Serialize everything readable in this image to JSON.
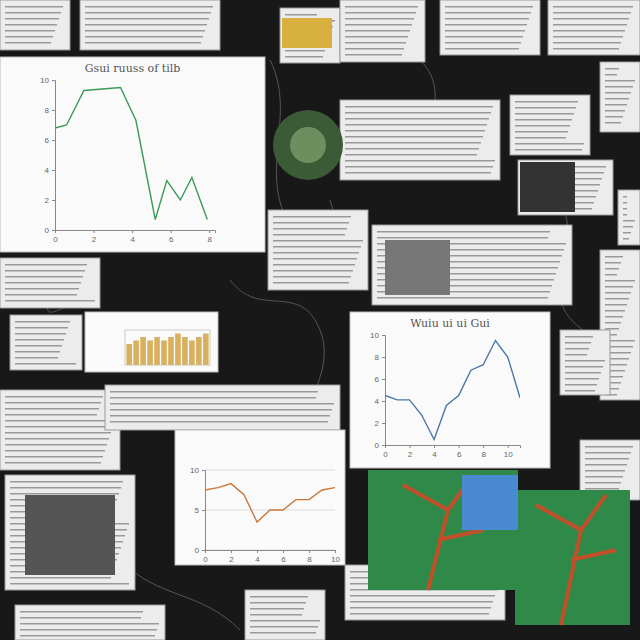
{
  "chart_data": [
    {
      "type": "line",
      "title": "Gsui ruuss of tilb",
      "color": "#3a9a5a",
      "x": [
        0,
        0.6,
        1.5,
        3.4,
        4.2,
        5.2,
        5.8,
        6.5,
        7.1,
        7.9
      ],
      "values": [
        6.8,
        7.0,
        9.3,
        9.5,
        7.3,
        0.7,
        3.3,
        2.0,
        3.5,
        0.7
      ],
      "xlim": [
        0,
        8.3
      ],
      "xticks": [
        0,
        2,
        4,
        6,
        8
      ],
      "ylim": [
        0,
        10
      ],
      "yticks": [
        0,
        2,
        4,
        6,
        8,
        10
      ],
      "grid": false
    },
    {
      "type": "line",
      "title": "Wuiu ui ui Gui",
      "color": "#4a78a8",
      "x": [
        0,
        1,
        2,
        3,
        4,
        5,
        6,
        7,
        8,
        9,
        10,
        11
      ],
      "values": [
        4.5,
        4.1,
        4.1,
        2.7,
        0.5,
        3.6,
        4.5,
        6.8,
        7.3,
        9.5,
        8.0,
        4.3
      ],
      "xlim": [
        0,
        11
      ],
      "xticks": [
        0,
        2,
        4,
        6,
        8,
        10
      ],
      "ylim": [
        0,
        10
      ],
      "yticks": [
        0,
        2,
        4,
        6,
        8,
        10
      ],
      "grid": false
    },
    {
      "type": "line",
      "color": "#c8783a",
      "x": [
        0,
        1,
        2,
        3,
        4,
        5,
        6,
        7,
        8,
        9,
        10
      ],
      "values": [
        7.5,
        7.8,
        8.3,
        6.9,
        3.5,
        5.0,
        5.0,
        6.3,
        6.3,
        7.5,
        7.8
      ],
      "xlim": [
        0,
        10
      ],
      "xticks": [
        0,
        2,
        4,
        6,
        8,
        10
      ],
      "ylim": [
        0,
        10
      ],
      "yticks": [
        0,
        5,
        10
      ],
      "grid": true
    },
    {
      "type": "bar",
      "color": "#d8b060",
      "categories": [
        null,
        null,
        null,
        null,
        null,
        null,
        null,
        null,
        null,
        null,
        null,
        null
      ],
      "values": [
        6,
        7,
        8,
        7,
        8,
        7,
        8,
        9,
        8,
        7,
        8,
        9
      ],
      "ylim": [
        0,
        10
      ],
      "tick_labels": false
    }
  ]
}
